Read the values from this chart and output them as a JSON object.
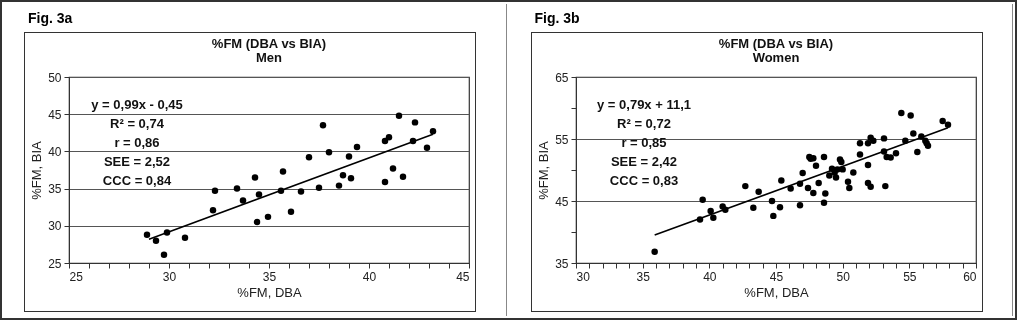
{
  "chart_data": [
    {
      "type": "scatter",
      "title": "%FM (DBA vs BIA)",
      "subtitle": "Men",
      "xlabel": "%FM, DBA",
      "ylabel": "%FM, BIA",
      "grid": "y",
      "annotations": [
        "Fig. 3a",
        "y = 0,99x - 0,45",
        "R² = 0,74",
        "r = 0,86",
        "SEE = 2,52",
        "CCC = 0,84"
      ],
      "xlim": [
        25,
        45
      ],
      "ylim": [
        25,
        50
      ],
      "xticks": [
        25,
        {
          "value": 26,
          "label": null
        },
        {
          "value": 27,
          "label": null
        },
        {
          "value": 28,
          "label": null
        },
        {
          "value": 29,
          "label": null
        },
        30,
        {
          "value": 31,
          "label": null
        },
        {
          "value": 32,
          "label": null
        },
        {
          "value": 33,
          "label": null
        },
        {
          "value": 34,
          "label": null
        },
        35,
        {
          "value": 36,
          "label": null
        },
        {
          "value": 37,
          "label": null
        },
        {
          "value": 38,
          "label": null
        },
        {
          "value": 39,
          "label": null
        },
        40,
        {
          "value": 41,
          "label": null
        },
        {
          "value": 42,
          "label": null
        },
        {
          "value": 43,
          "label": null
        },
        {
          "value": 44,
          "label": null
        },
        45
      ],
      "yticks": [
        25,
        30,
        35,
        40,
        45,
        50
      ],
      "series": [
        {
          "marker": "circle",
          "color": "#000000",
          "x": [
            28.9,
            29.35,
            29.75,
            29.9,
            30.8,
            32.2,
            32.3,
            33.4,
            33.7,
            34.3,
            34.4,
            34.5,
            34.95,
            35.6,
            35.7,
            36.1,
            36.6,
            37.0,
            37.5,
            37.7,
            38.0,
            38.5,
            38.7,
            39.0,
            39.1,
            39.4,
            40.8,
            40.8,
            41.0,
            41.2,
            41.5,
            41.7,
            42.2,
            42.3,
            42.9,
            43.2
          ],
          "values": [
            28.8,
            28.0,
            26.1,
            29.1,
            28.4,
            32.1,
            34.7,
            35.0,
            33.4,
            36.5,
            30.5,
            34.2,
            31.2,
            34.7,
            37.3,
            31.9,
            34.6,
            39.2,
            35.1,
            43.5,
            39.9,
            35.4,
            36.8,
            39.3,
            36.4,
            40.6,
            41.4,
            35.9,
            41.9,
            37.7,
            44.8,
            36.6,
            41.4,
            43.9,
            40.5,
            42.7
          ]
        },
        {
          "type": "line",
          "color": "#000000",
          "x": [
            29.0,
            43.2
          ],
          "values": [
            28.2,
            42.3
          ]
        }
      ]
    },
    {
      "type": "scatter",
      "title": "%FM (DBA vs BIA)",
      "subtitle": "Women",
      "xlabel": "%FM, DBA",
      "ylabel": "%FM, BIA",
      "grid": "y",
      "annotations": [
        "Fig. 3b",
        "y = 0,79x + 11,1",
        "R² = 0,72",
        "r = 0,85",
        "SEE = 2,42",
        "CCC = 0,83"
      ],
      "xlim": [
        30,
        60
      ],
      "ylim": [
        35,
        65
      ],
      "xticks": [
        30,
        {
          "value": 31,
          "label": null
        },
        {
          "value": 32,
          "label": null
        },
        {
          "value": 33,
          "label": null
        },
        {
          "value": 34,
          "label": null
        },
        35,
        {
          "value": 36,
          "label": null
        },
        {
          "value": 37,
          "label": null
        },
        {
          "value": 38,
          "label": null
        },
        {
          "value": 39,
          "label": null
        },
        40,
        {
          "value": 41,
          "label": null
        },
        {
          "value": 42,
          "label": null
        },
        {
          "value": 43,
          "label": null
        },
        {
          "value": 44,
          "label": null
        },
        45,
        {
          "value": 46,
          "label": null
        },
        {
          "value": 47,
          "label": null
        },
        {
          "value": 48,
          "label": null
        },
        {
          "value": 49,
          "label": null
        },
        50,
        {
          "value": 51,
          "label": null
        },
        {
          "value": 52,
          "label": null
        },
        {
          "value": 53,
          "label": null
        },
        {
          "value": 54,
          "label": null
        },
        55,
        {
          "value": 56,
          "label": null
        },
        {
          "value": 57,
          "label": null
        },
        {
          "value": 58,
          "label": null
        },
        {
          "value": 59,
          "label": null
        },
        60
      ],
      "yticks": [
        35,
        {
          "value": 40,
          "label": null
        },
        45,
        {
          "value": 50,
          "label": null
        },
        55,
        {
          "value": 60,
          "label": null
        },
        65
      ],
      "series": [
        {
          "marker": "circle",
          "color": "#000000",
          "x": [
            35.9,
            39.3,
            39.5,
            40.1,
            40.3,
            41.0,
            41.2,
            42.7,
            43.3,
            43.7,
            44.7,
            44.8,
            45.3,
            45.4,
            46.1,
            46.8,
            46.8,
            47.0,
            47.4,
            47.5,
            47.6,
            47.8,
            47.8,
            48.0,
            48.2,
            48.6,
            48.7,
            48.6,
            49.0,
            49.2,
            49.4,
            49.5,
            49.6,
            49.8,
            49.9,
            50.0,
            50.4,
            50.5,
            50.8,
            51.3,
            51.3,
            51.9,
            51.9,
            51.9,
            52.1,
            52.1,
            52.3,
            53.1,
            53.1,
            53.2,
            53.3,
            53.6,
            54.0,
            54.4,
            54.7,
            55.1,
            55.3,
            55.6,
            55.9,
            56.2,
            56.3,
            56.4,
            57.5,
            57.9
          ],
          "values": [
            36.8,
            42.0,
            45.2,
            43.4,
            42.3,
            44.1,
            43.6,
            47.4,
            43.9,
            46.5,
            45.0,
            42.6,
            44.0,
            48.3,
            47.0,
            44.3,
            47.8,
            49.5,
            47.1,
            52.1,
            51.8,
            51.9,
            46.3,
            50.7,
            47.9,
            52.1,
            46.2,
            44.7,
            49.1,
            50.2,
            49.6,
            48.8,
            50.1,
            51.7,
            51.3,
            50.1,
            48.1,
            47.1,
            49.6,
            52.5,
            54.3,
            50.8,
            54.3,
            47.9,
            47.3,
            55.2,
            54.7,
            55.1,
            53.0,
            47.4,
            52.1,
            52.0,
            52.7,
            59.2,
            54.7,
            58.8,
            55.9,
            52.9,
            55.4,
            54.7,
            54.3,
            53.9,
            57.9,
            57.3
          ]
        },
        {
          "type": "line",
          "color": "#000000",
          "x": [
            35.9,
            57.9
          ],
          "values": [
            39.5,
            56.8
          ]
        }
      ]
    }
  ]
}
